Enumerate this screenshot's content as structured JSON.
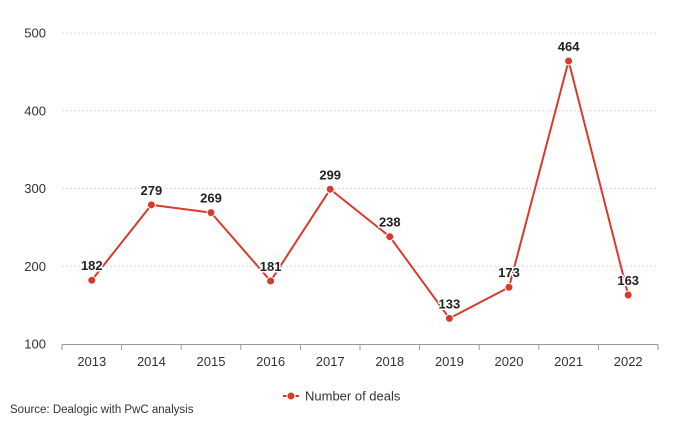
{
  "chart_data": {
    "type": "line",
    "title": "",
    "xlabel": "",
    "ylabel": "",
    "x": [
      "2013",
      "2014",
      "2015",
      "2016",
      "2017",
      "2018",
      "2019",
      "2020",
      "2021",
      "2022"
    ],
    "series": [
      {
        "name": "Number of deals",
        "color": "#d93a2b",
        "values": [
          182,
          279,
          269,
          181,
          299,
          238,
          133,
          173,
          464,
          163
        ]
      }
    ],
    "ylim": [
      100,
      500
    ],
    "yticks": [
      100,
      200,
      300,
      400,
      500
    ],
    "grid": true,
    "legend": "bottom-center",
    "data_labels": true
  },
  "source": "Source: Dealogic with PwC analysis"
}
